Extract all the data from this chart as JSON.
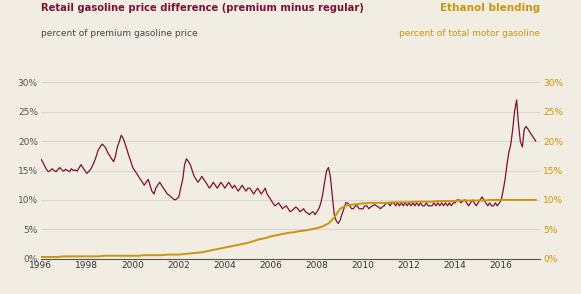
{
  "title_left_line1": "Retail gasoline price difference (premium minus regular)",
  "title_left_line2": "percent of premium gasoline price",
  "title_right_line1": "Ethanol blending",
  "title_right_line2": "percent of total motor gasoline",
  "bg_color": "#f2ede3",
  "grid_color": "#cccccc",
  "line1_color": "#7b1230",
  "line2_color": "#c8960c",
  "xlim": [
    1996,
    2017.7
  ],
  "ylim": [
    0,
    30
  ],
  "xticks": [
    1996,
    1998,
    2000,
    2002,
    2004,
    2006,
    2008,
    2010,
    2012,
    2014,
    2016
  ],
  "yticks": [
    0,
    5,
    10,
    15,
    20,
    25,
    30
  ],
  "gasoline_diff": {
    "years": [
      1996.0,
      1996.08,
      1996.17,
      1996.25,
      1996.33,
      1996.42,
      1996.5,
      1996.58,
      1996.67,
      1996.75,
      1996.83,
      1996.92,
      1997.0,
      1997.08,
      1997.17,
      1997.25,
      1997.33,
      1997.42,
      1997.5,
      1997.58,
      1997.67,
      1997.75,
      1997.83,
      1997.92,
      1998.0,
      1998.08,
      1998.17,
      1998.25,
      1998.33,
      1998.42,
      1998.5,
      1998.58,
      1998.67,
      1998.75,
      1998.83,
      1998.92,
      1999.0,
      1999.08,
      1999.17,
      1999.25,
      1999.33,
      1999.42,
      1999.5,
      1999.58,
      1999.67,
      1999.75,
      1999.83,
      1999.92,
      2000.0,
      2000.08,
      2000.17,
      2000.25,
      2000.33,
      2000.42,
      2000.5,
      2000.58,
      2000.67,
      2000.75,
      2000.83,
      2000.92,
      2001.0,
      2001.08,
      2001.17,
      2001.25,
      2001.33,
      2001.42,
      2001.5,
      2001.58,
      2001.67,
      2001.75,
      2001.83,
      2001.92,
      2002.0,
      2002.08,
      2002.17,
      2002.25,
      2002.33,
      2002.42,
      2002.5,
      2002.58,
      2002.67,
      2002.75,
      2002.83,
      2002.92,
      2003.0,
      2003.08,
      2003.17,
      2003.25,
      2003.33,
      2003.42,
      2003.5,
      2003.58,
      2003.67,
      2003.75,
      2003.83,
      2003.92,
      2004.0,
      2004.08,
      2004.17,
      2004.25,
      2004.33,
      2004.42,
      2004.5,
      2004.58,
      2004.67,
      2004.75,
      2004.83,
      2004.92,
      2005.0,
      2005.08,
      2005.17,
      2005.25,
      2005.33,
      2005.42,
      2005.5,
      2005.58,
      2005.67,
      2005.75,
      2005.83,
      2005.92,
      2006.0,
      2006.08,
      2006.17,
      2006.25,
      2006.33,
      2006.42,
      2006.5,
      2006.58,
      2006.67,
      2006.75,
      2006.83,
      2006.92,
      2007.0,
      2007.08,
      2007.17,
      2007.25,
      2007.33,
      2007.42,
      2007.5,
      2007.58,
      2007.67,
      2007.75,
      2007.83,
      2007.92,
      2008.0,
      2008.08,
      2008.17,
      2008.25,
      2008.33,
      2008.42,
      2008.5,
      2008.58,
      2008.67,
      2008.75,
      2008.83,
      2008.92,
      2009.0,
      2009.08,
      2009.17,
      2009.25,
      2009.33,
      2009.42,
      2009.5,
      2009.58,
      2009.67,
      2009.75,
      2009.83,
      2009.92,
      2010.0,
      2010.08,
      2010.17,
      2010.25,
      2010.33,
      2010.42,
      2010.5,
      2010.58,
      2010.67,
      2010.75,
      2010.83,
      2010.92,
      2011.0,
      2011.08,
      2011.17,
      2011.25,
      2011.33,
      2011.42,
      2011.5,
      2011.58,
      2011.67,
      2011.75,
      2011.83,
      2011.92,
      2012.0,
      2012.08,
      2012.17,
      2012.25,
      2012.33,
      2012.42,
      2012.5,
      2012.58,
      2012.67,
      2012.75,
      2012.83,
      2012.92,
      2013.0,
      2013.08,
      2013.17,
      2013.25,
      2013.33,
      2013.42,
      2013.5,
      2013.58,
      2013.67,
      2013.75,
      2013.83,
      2013.92,
      2014.0,
      2014.08,
      2014.17,
      2014.25,
      2014.33,
      2014.42,
      2014.5,
      2014.58,
      2014.67,
      2014.75,
      2014.83,
      2014.92,
      2015.0,
      2015.08,
      2015.17,
      2015.25,
      2015.33,
      2015.42,
      2015.5,
      2015.58,
      2015.67,
      2015.75,
      2015.83,
      2015.92,
      2016.0,
      2016.08,
      2016.17,
      2016.25,
      2016.33,
      2016.42,
      2016.5,
      2016.58,
      2016.67,
      2016.75,
      2016.83,
      2016.92,
      2017.0,
      2017.08,
      2017.17,
      2017.25,
      2017.33,
      2017.42,
      2017.5
    ],
    "values": [
      17.0,
      16.5,
      15.8,
      15.2,
      14.8,
      15.0,
      15.3,
      15.0,
      14.8,
      15.2,
      15.5,
      15.1,
      14.9,
      15.2,
      15.0,
      14.8,
      15.3,
      15.0,
      15.1,
      14.9,
      15.5,
      16.0,
      15.5,
      15.0,
      14.5,
      14.8,
      15.2,
      15.8,
      16.5,
      17.5,
      18.5,
      19.0,
      19.5,
      19.2,
      18.8,
      18.0,
      17.5,
      17.0,
      16.5,
      17.5,
      19.0,
      20.0,
      21.0,
      20.5,
      19.5,
      18.5,
      17.5,
      16.5,
      15.5,
      15.0,
      14.5,
      14.0,
      13.5,
      13.0,
      12.5,
      13.0,
      13.5,
      12.5,
      11.5,
      11.0,
      12.0,
      12.5,
      13.0,
      12.5,
      12.0,
      11.5,
      11.0,
      10.8,
      10.5,
      10.2,
      10.0,
      10.2,
      10.5,
      12.0,
      13.5,
      16.0,
      17.0,
      16.5,
      16.0,
      15.0,
      14.0,
      13.5,
      13.0,
      13.5,
      14.0,
      13.5,
      13.0,
      12.5,
      12.0,
      12.5,
      13.0,
      12.5,
      12.0,
      12.5,
      13.0,
      12.5,
      12.0,
      12.5,
      13.0,
      12.5,
      12.0,
      12.5,
      12.0,
      11.5,
      12.0,
      12.5,
      12.0,
      11.5,
      12.0,
      12.0,
      11.5,
      11.0,
      11.5,
      12.0,
      11.5,
      11.0,
      11.5,
      12.0,
      11.0,
      10.5,
      10.0,
      9.5,
      9.0,
      9.2,
      9.5,
      9.0,
      8.5,
      8.8,
      9.0,
      8.5,
      8.0,
      8.2,
      8.5,
      8.8,
      8.5,
      8.0,
      8.2,
      8.5,
      8.0,
      7.8,
      7.5,
      7.8,
      8.0,
      7.5,
      8.0,
      8.5,
      9.5,
      11.0,
      13.0,
      15.0,
      15.5,
      14.0,
      10.5,
      7.5,
      6.5,
      6.0,
      6.5,
      7.5,
      8.5,
      9.5,
      9.5,
      9.0,
      8.5,
      8.5,
      9.0,
      9.0,
      8.5,
      8.5,
      8.5,
      9.0,
      9.0,
      8.5,
      8.8,
      9.0,
      9.2,
      9.0,
      8.8,
      8.5,
      8.8,
      9.0,
      9.5,
      9.5,
      9.0,
      9.5,
      9.5,
      9.0,
      9.5,
      9.0,
      9.5,
      9.0,
      9.5,
      9.0,
      9.5,
      9.0,
      9.5,
      9.0,
      9.5,
      9.0,
      9.5,
      9.0,
      9.0,
      9.5,
      9.0,
      9.0,
      9.0,
      9.5,
      9.0,
      9.5,
      9.0,
      9.5,
      9.0,
      9.5,
      9.0,
      9.5,
      9.0,
      9.5,
      9.5,
      10.0,
      10.0,
      9.5,
      9.8,
      10.0,
      9.5,
      9.0,
      9.5,
      10.0,
      9.5,
      9.0,
      9.5,
      10.0,
      10.5,
      10.0,
      9.5,
      9.0,
      9.5,
      9.0,
      9.0,
      9.5,
      9.0,
      9.5,
      10.0,
      11.5,
      13.5,
      16.0,
      18.0,
      19.5,
      22.0,
      25.0,
      27.0,
      23.0,
      20.0,
      19.0,
      22.0,
      22.5,
      22.0,
      21.5,
      21.0,
      20.5,
      20.0
    ]
  },
  "ethanol_blend": {
    "years": [
      1996.0,
      1996.25,
      1996.5,
      1996.75,
      1997.0,
      1997.25,
      1997.5,
      1997.75,
      1998.0,
      1998.25,
      1998.5,
      1998.75,
      1999.0,
      1999.25,
      1999.5,
      1999.75,
      2000.0,
      2000.25,
      2000.5,
      2000.75,
      2001.0,
      2001.25,
      2001.5,
      2001.75,
      2002.0,
      2002.25,
      2002.5,
      2002.75,
      2003.0,
      2003.25,
      2003.5,
      2003.75,
      2004.0,
      2004.25,
      2004.5,
      2004.75,
      2005.0,
      2005.25,
      2005.5,
      2005.75,
      2006.0,
      2006.25,
      2006.5,
      2006.75,
      2007.0,
      2007.25,
      2007.5,
      2007.75,
      2008.0,
      2008.25,
      2008.5,
      2008.75,
      2009.0,
      2009.25,
      2009.5,
      2009.75,
      2010.0,
      2010.25,
      2010.5,
      2010.75,
      2011.0,
      2011.25,
      2011.5,
      2011.75,
      2012.0,
      2012.25,
      2012.5,
      2012.75,
      2013.0,
      2013.25,
      2013.5,
      2013.75,
      2014.0,
      2014.25,
      2014.5,
      2014.75,
      2015.0,
      2015.25,
      2015.5,
      2015.75,
      2016.0,
      2016.25,
      2016.5,
      2016.75,
      2017.0,
      2017.25,
      2017.5
    ],
    "values": [
      0.3,
      0.3,
      0.3,
      0.3,
      0.4,
      0.4,
      0.4,
      0.4,
      0.4,
      0.4,
      0.4,
      0.5,
      0.5,
      0.5,
      0.5,
      0.5,
      0.5,
      0.5,
      0.6,
      0.6,
      0.6,
      0.6,
      0.7,
      0.7,
      0.7,
      0.8,
      0.9,
      1.0,
      1.1,
      1.3,
      1.5,
      1.7,
      1.9,
      2.1,
      2.3,
      2.5,
      2.7,
      3.0,
      3.3,
      3.5,
      3.8,
      4.0,
      4.2,
      4.4,
      4.5,
      4.7,
      4.8,
      5.0,
      5.2,
      5.5,
      6.0,
      7.0,
      8.5,
      9.0,
      9.2,
      9.3,
      9.4,
      9.5,
      9.5,
      9.5,
      9.5,
      9.6,
      9.6,
      9.6,
      9.6,
      9.7,
      9.7,
      9.7,
      9.7,
      9.8,
      9.8,
      9.8,
      9.8,
      9.9,
      9.9,
      9.9,
      9.9,
      9.9,
      10.0,
      10.0,
      10.0,
      10.0,
      10.0,
      10.0,
      10.0,
      10.0,
      10.0
    ]
  }
}
